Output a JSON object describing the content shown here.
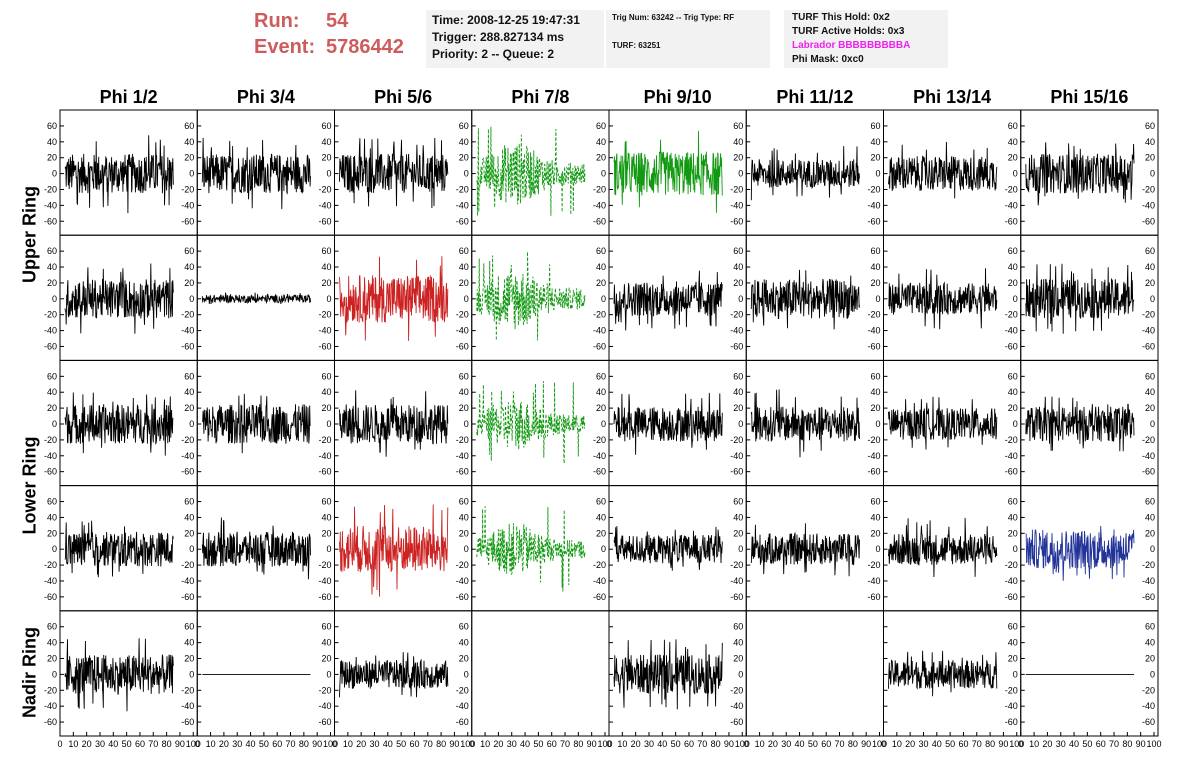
{
  "header": {
    "run_label": "Run:",
    "run_value": "54",
    "event_label": "Event:",
    "event_value": "5786442",
    "time": "Time: 2008-12-25 19:47:31",
    "trigger": "Trigger: 288.827134 ms",
    "priority": "Priority: 2 -- Queue: 2",
    "trig_num": "Trig Num: 63242 -- Trig Type: RF",
    "turf": "TURF: 63251",
    "turf_this_hold": "TURF This Hold: 0x2",
    "turf_active_holds": "TURF Active Holds: 0x3",
    "labrador": "Labrador BBBBBBBBBA",
    "phi_mask": "Phi Mask: 0xc0"
  },
  "colors": {
    "run_text": "#cd5c5c",
    "labrador_text": "#ee22ee",
    "trace_default": "#000000",
    "trace_red": "#cc2222",
    "trace_green": "#119911",
    "trace_blue": "#223399"
  },
  "chart_data": {
    "type": "line",
    "phi_labels": [
      "Phi 1/2",
      "Phi 3/4",
      "Phi 5/6",
      "Phi 7/8",
      "Phi 9/10",
      "Phi 11/12",
      "Phi 13/14",
      "Phi 15/16"
    ],
    "ring_labels": [
      {
        "label": "Upper Ring",
        "rows": [
          0,
          1
        ]
      },
      {
        "label": "Lower Ring",
        "rows": [
          2,
          3
        ]
      },
      {
        "label": "Nadir Ring",
        "rows": [
          4
        ]
      }
    ],
    "xlim": [
      0,
      100
    ],
    "ylim": [
      -70,
      70
    ],
    "x_ticks": [
      0,
      10,
      20,
      30,
      40,
      50,
      60,
      70,
      80,
      90,
      100
    ],
    "y_ticks": [
      -60,
      -40,
      -20,
      0,
      20,
      40,
      60
    ],
    "panels": [
      [
        {
          "style": "solid",
          "color": "#000000",
          "amplitude": 25,
          "spike": 50
        },
        {
          "style": "solid",
          "color": "#000000",
          "amplitude": 25,
          "spike": 45
        },
        {
          "style": "solid",
          "color": "#000000",
          "amplitude": 25,
          "spike": 45
        },
        {
          "style": "dashed",
          "color": "#119911",
          "amplitude": 30,
          "spike": 60,
          "burst": true
        },
        {
          "style": "solid",
          "color": "#119911",
          "amplitude": 28,
          "spike": 55
        },
        {
          "style": "solid",
          "color": "#000000",
          "amplitude": 18,
          "spike": 35
        },
        {
          "style": "solid",
          "color": "#000000",
          "amplitude": 22,
          "spike": 40
        },
        {
          "style": "solid",
          "color": "#000000",
          "amplitude": 25,
          "spike": 40
        }
      ],
      [
        {
          "style": "solid",
          "color": "#000000",
          "amplitude": 25,
          "spike": 45
        },
        {
          "style": "solid",
          "color": "#000000",
          "amplitude": 5,
          "spike": 8
        },
        {
          "style": "solid",
          "color": "#cc2222",
          "amplitude": 30,
          "spike": 55
        },
        {
          "style": "dashed",
          "color": "#119911",
          "amplitude": 30,
          "spike": 60,
          "burst": true
        },
        {
          "style": "solid",
          "color": "#000000",
          "amplitude": 22,
          "spike": 40
        },
        {
          "style": "solid",
          "color": "#000000",
          "amplitude": 25,
          "spike": 40
        },
        {
          "style": "solid",
          "color": "#000000",
          "amplitude": 20,
          "spike": 40
        },
        {
          "style": "solid",
          "color": "#000000",
          "amplitude": 25,
          "spike": 45
        }
      ],
      [
        {
          "style": "solid",
          "color": "#000000",
          "amplitude": 25,
          "spike": 40
        },
        {
          "style": "solid",
          "color": "#000000",
          "amplitude": 25,
          "spike": 40
        },
        {
          "style": "solid",
          "color": "#000000",
          "amplitude": 25,
          "spike": 45
        },
        {
          "style": "dashed",
          "color": "#119911",
          "amplitude": 25,
          "spike": 55,
          "burst": true
        },
        {
          "style": "solid",
          "color": "#000000",
          "amplitude": 22,
          "spike": 40
        },
        {
          "style": "solid",
          "color": "#000000",
          "amplitude": 22,
          "spike": 45
        },
        {
          "style": "solid",
          "color": "#000000",
          "amplitude": 20,
          "spike": 35
        },
        {
          "style": "solid",
          "color": "#000000",
          "amplitude": 22,
          "spike": 35
        }
      ],
      [
        {
          "style": "solid",
          "color": "#000000",
          "amplitude": 22,
          "spike": 40
        },
        {
          "style": "solid",
          "color": "#000000",
          "amplitude": 22,
          "spike": 40
        },
        {
          "style": "solid",
          "color": "#cc2222",
          "amplitude": 30,
          "spike": 60
        },
        {
          "style": "dashed",
          "color": "#119911",
          "amplitude": 25,
          "spike": 55,
          "burst": true
        },
        {
          "style": "solid",
          "color": "#000000",
          "amplitude": 18,
          "spike": 30
        },
        {
          "style": "solid",
          "color": "#000000",
          "amplitude": 20,
          "spike": 35
        },
        {
          "style": "solid",
          "color": "#000000",
          "amplitude": 20,
          "spike": 40
        },
        {
          "style": "solid",
          "color": "#223399",
          "amplitude": 25,
          "spike": 40
        }
      ],
      [
        {
          "style": "solid",
          "color": "#000000",
          "amplitude": 25,
          "spike": 50
        },
        {
          "style": "flat",
          "color": "#000000",
          "amplitude": 0,
          "spike": 0
        },
        {
          "style": "solid",
          "color": "#000000",
          "amplitude": 18,
          "spike": 30
        },
        {
          "style": "empty"
        },
        {
          "style": "solid",
          "color": "#000000",
          "amplitude": 25,
          "spike": 45
        },
        {
          "style": "empty"
        },
        {
          "style": "solid",
          "color": "#000000",
          "amplitude": 18,
          "spike": 30
        },
        {
          "style": "flat",
          "color": "#000000",
          "amplitude": 0,
          "spike": 0
        }
      ]
    ]
  }
}
